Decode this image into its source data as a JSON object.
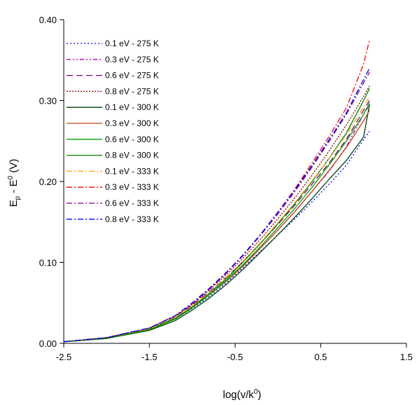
{
  "chart_data": {
    "type": "line",
    "xlabel": "log(v/k",
    "xlabel_sup": "0",
    "xlabel_close": ")",
    "ylabel_parts": [
      "E",
      "p",
      " - E",
      "0",
      " (V)"
    ],
    "xlim": [
      -2.5,
      1.5
    ],
    "ylim": [
      0.0,
      0.4
    ],
    "xticks": [
      -2.5,
      -1.5,
      -0.5,
      0.5,
      1.5
    ],
    "xtick_labels": [
      "-2.5",
      "-1.5",
      "-0.5",
      "0.5",
      "1.5"
    ],
    "yticks": [
      0.0,
      0.1,
      0.2,
      0.3,
      0.4
    ],
    "ytick_labels": [
      "0.00",
      "0.10",
      "0.20",
      "0.30",
      "0.40"
    ],
    "grid": false,
    "legend_position": "top-left",
    "x": [
      -2.5,
      -2.0,
      -1.5,
      -1.2,
      -1.0,
      -0.8,
      -0.6,
      -0.4,
      -0.2,
      0.0,
      0.2,
      0.4,
      0.6,
      0.8,
      1.0,
      1.07
    ],
    "series": [
      {
        "name": "0.1 eV - 275 K",
        "color": "#0000ff",
        "dash": "2,3",
        "values": [
          0.002,
          0.006,
          0.017,
          0.03,
          0.043,
          0.058,
          0.075,
          0.094,
          0.114,
          0.134,
          0.154,
          0.175,
          0.197,
          0.22,
          0.252,
          0.262
        ]
      },
      {
        "name": "0.3 eV - 275 K",
        "color": "#aa00aa",
        "dash": "6,3,2,3,2,3",
        "values": [
          0.002,
          0.007,
          0.018,
          0.031,
          0.045,
          0.061,
          0.078,
          0.097,
          0.118,
          0.14,
          0.163,
          0.188,
          0.213,
          0.243,
          0.283,
          0.295
        ]
      },
      {
        "name": "0.6 eV - 275 K",
        "color": "#800080",
        "dash": "9,5",
        "values": [
          0.002,
          0.007,
          0.019,
          0.033,
          0.047,
          0.064,
          0.082,
          0.102,
          0.124,
          0.147,
          0.171,
          0.197,
          0.223,
          0.252,
          0.288,
          0.3
        ]
      },
      {
        "name": "0.8 eV - 275 K",
        "color": "#800000",
        "dash": "2,2",
        "values": [
          0.002,
          0.007,
          0.019,
          0.034,
          0.048,
          0.066,
          0.085,
          0.106,
          0.129,
          0.154,
          0.18,
          0.208,
          0.238,
          0.27,
          0.305,
          0.318
        ]
      },
      {
        "name": "0.1 eV - 300 K",
        "color": "#004000",
        "dash": "",
        "values": [
          0.002,
          0.006,
          0.016,
          0.028,
          0.041,
          0.056,
          0.073,
          0.092,
          0.113,
          0.134,
          0.156,
          0.179,
          0.203,
          0.226,
          0.255,
          0.295
        ]
      },
      {
        "name": "0.3 eV - 300 K",
        "color": "#c04020",
        "dash": "",
        "values": [
          0.002,
          0.006,
          0.017,
          0.03,
          0.044,
          0.06,
          0.077,
          0.096,
          0.118,
          0.14,
          0.163,
          0.188,
          0.214,
          0.242,
          0.275,
          0.288
        ]
      },
      {
        "name": "0.6 eV - 300 K",
        "color": "#00a000",
        "dash": "",
        "values": [
          0.002,
          0.006,
          0.017,
          0.03,
          0.044,
          0.06,
          0.078,
          0.098,
          0.12,
          0.143,
          0.167,
          0.193,
          0.221,
          0.25,
          0.283,
          0.297
        ]
      },
      {
        "name": "0.8 eV - 300 K",
        "color": "#008000",
        "dash": "",
        "values": [
          0.002,
          0.006,
          0.018,
          0.031,
          0.045,
          0.062,
          0.08,
          0.101,
          0.124,
          0.148,
          0.173,
          0.2,
          0.229,
          0.26,
          0.3,
          0.315
        ]
      },
      {
        "name": "0.1 eV - 333 K",
        "color": "#ffa500",
        "dash": "8,3,2,3",
        "values": [
          0.002,
          0.007,
          0.018,
          0.032,
          0.046,
          0.063,
          0.082,
          0.102,
          0.125,
          0.149,
          0.174,
          0.201,
          0.229,
          0.258,
          0.292,
          0.305
        ]
      },
      {
        "name": "0.3 eV - 333 K",
        "color": "#ff0000",
        "dash": "8,3,2,3",
        "values": [
          0.002,
          0.007,
          0.019,
          0.034,
          0.049,
          0.067,
          0.087,
          0.11,
          0.135,
          0.162,
          0.191,
          0.223,
          0.256,
          0.291,
          0.345,
          0.375
        ]
      },
      {
        "name": "0.6 eV - 333 K",
        "color": "#800080",
        "dash": "8,3,2,3",
        "values": [
          0.002,
          0.007,
          0.019,
          0.034,
          0.049,
          0.067,
          0.087,
          0.109,
          0.134,
          0.16,
          0.188,
          0.218,
          0.25,
          0.283,
          0.322,
          0.335
        ]
      },
      {
        "name": "0.8 eV - 333 K",
        "color": "#0000ff",
        "dash": "8,3,2,3",
        "values": [
          0.002,
          0.007,
          0.019,
          0.034,
          0.05,
          0.068,
          0.088,
          0.11,
          0.135,
          0.162,
          0.19,
          0.22,
          0.252,
          0.285,
          0.326,
          0.34
        ]
      }
    ]
  }
}
